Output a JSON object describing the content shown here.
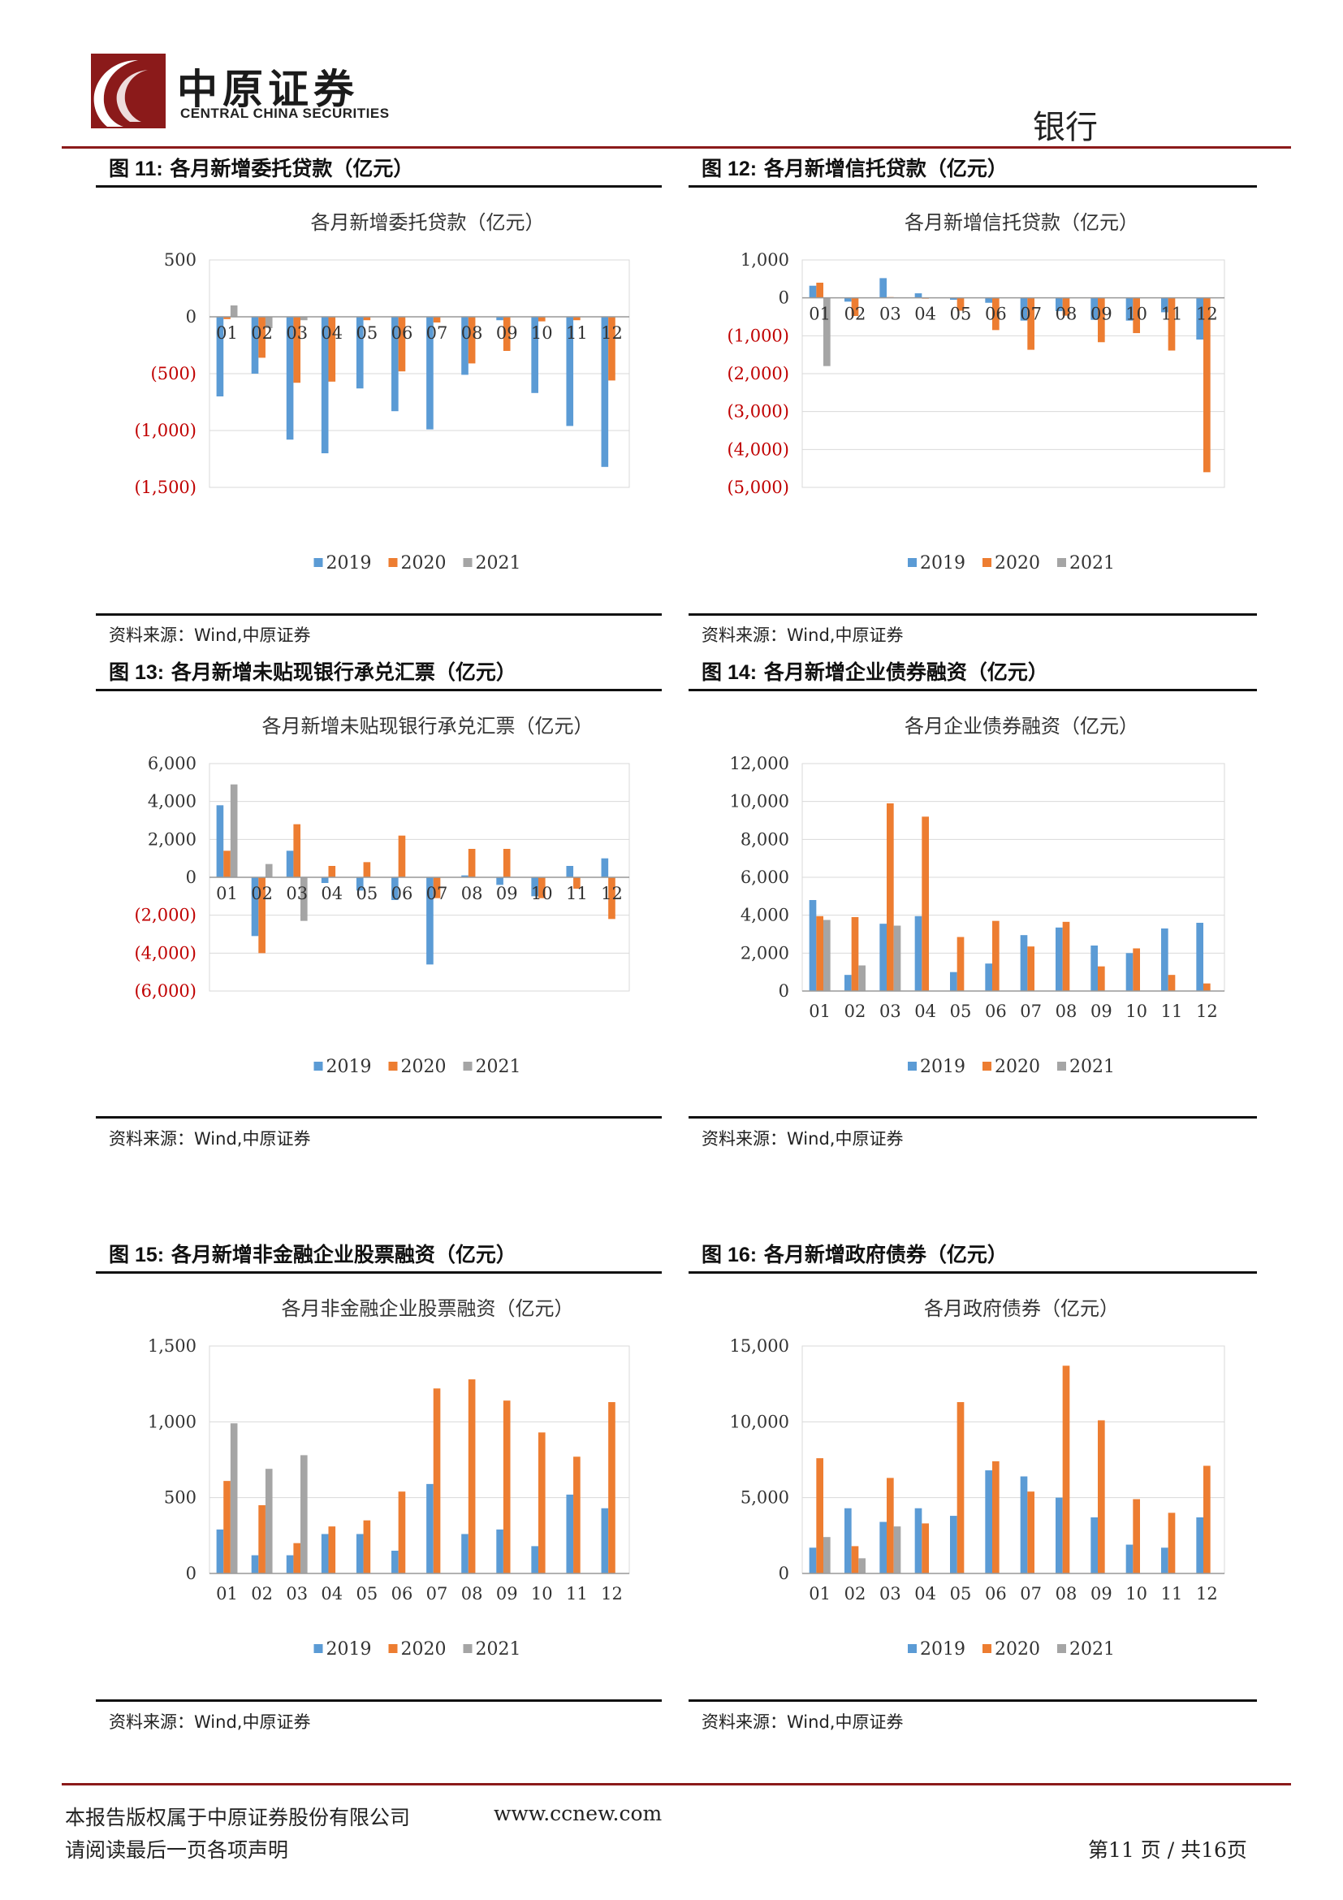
{
  "header": {
    "company_cn": "中原证券",
    "company_en": "CENTRAL CHINA SECURITIES",
    "sector": "银行"
  },
  "figures": [
    {
      "label": "图 11:",
      "title": "各月新增委托贷款（亿元）",
      "source": "资料来源：Wind,中原证券"
    },
    {
      "label": "图 12:",
      "title": "各月新增信托贷款（亿元）",
      "source": "资料来源：Wind,中原证券"
    },
    {
      "label": "图 13:",
      "title": "各月新增未贴现银行承兑汇票（亿元）",
      "source": "资料来源：Wind,中原证券"
    },
    {
      "label": "图 14:",
      "title": "各月新增企业债券融资（亿元）",
      "source": "资料来源：Wind,中原证券"
    },
    {
      "label": "图 15:",
      "title": "各月新增非金融企业股票融资（亿元）",
      "source": "资料来源：Wind,中原证券"
    },
    {
      "label": "图 16:",
      "title": "各月新增政府债券（亿元）",
      "source": "资料来源：Wind,中原证券"
    }
  ],
  "footer": {
    "copyright": "本报告版权属于中原证券股份有限公司",
    "website": "www.ccnew.com",
    "disclaimer": "请阅读最后一页各项声明",
    "page": "第11 页 / 共16页"
  },
  "colors": {
    "2019": "#5b9bd5",
    "2020": "#ed7d31",
    "2021": "#a5a5a5",
    "negative_tick": "#c00000",
    "brand_red": "#8b1a1a"
  },
  "chart_data": [
    {
      "type": "bar",
      "title": "各月新增委托贷款（亿元）",
      "categories": [
        "01",
        "02",
        "03",
        "04",
        "05",
        "06",
        "07",
        "08",
        "09",
        "10",
        "11",
        "12"
      ],
      "ylim": [
        -1500,
        500
      ],
      "yticks": [
        500,
        0,
        -500,
        -1000,
        -1500
      ],
      "ytick_labels": [
        "500",
        "0",
        "(500)",
        "(1,000)",
        "(1,500)"
      ],
      "legend": "bottom",
      "series": [
        {
          "name": "2019",
          "values": [
            -700,
            -500,
            -1080,
            -1200,
            -630,
            -830,
            -990,
            -510,
            -30,
            -670,
            -960,
            -1320
          ]
        },
        {
          "name": "2020",
          "values": [
            -20,
            -360,
            -580,
            -570,
            -30,
            -480,
            -50,
            -410,
            -300,
            -40,
            -30,
            -560
          ]
        },
        {
          "name": "2021",
          "values": [
            100,
            -100,
            -30,
            null,
            null,
            null,
            null,
            null,
            null,
            null,
            null,
            null
          ]
        }
      ]
    },
    {
      "type": "bar",
      "title": "各月新增信托贷款（亿元）",
      "categories": [
        "01",
        "02",
        "03",
        "04",
        "05",
        "06",
        "07",
        "08",
        "09",
        "10",
        "11",
        "12"
      ],
      "ylim": [
        -5000,
        1000
      ],
      "yticks": [
        1000,
        0,
        -1000,
        -2000,
        -3000,
        -4000,
        -5000
      ],
      "ytick_labels": [
        "1,000",
        "0",
        "(1,000)",
        "(2,000)",
        "(3,000)",
        "(4,000)",
        "(5,000)"
      ],
      "legend": "bottom",
      "series": [
        {
          "name": "2019",
          "values": [
            320,
            -100,
            520,
            120,
            -50,
            -130,
            -600,
            -350,
            -580,
            -600,
            -380,
            -1100
          ]
        },
        {
          "name": "2020",
          "values": [
            400,
            -480,
            20,
            -20,
            -340,
            -850,
            -1370,
            -470,
            -1170,
            -930,
            -1390,
            -4600
          ]
        },
        {
          "name": "2021",
          "values": [
            -1800,
            null,
            null,
            null,
            null,
            null,
            null,
            null,
            null,
            null,
            null,
            null
          ]
        }
      ]
    },
    {
      "type": "bar",
      "title": "各月新增未贴现银行承兑汇票（亿元）",
      "categories": [
        "01",
        "02",
        "03",
        "04",
        "05",
        "06",
        "07",
        "08",
        "09",
        "10",
        "11",
        "12"
      ],
      "ylim": [
        -6000,
        6000
      ],
      "yticks": [
        6000,
        4000,
        2000,
        0,
        -2000,
        -4000,
        -6000
      ],
      "ytick_labels": [
        "6,000",
        "4,000",
        "2,000",
        "0",
        "(2,000)",
        "(4,000)",
        "(6,000)"
      ],
      "legend": "bottom",
      "series": [
        {
          "name": "2019",
          "values": [
            3800,
            -3100,
            1400,
            -300,
            -700,
            -1200,
            -4600,
            100,
            -400,
            -1000,
            600,
            1000
          ]
        },
        {
          "name": "2020",
          "values": [
            1400,
            -4000,
            2800,
            600,
            800,
            2200,
            -1100,
            1500,
            1500,
            -1100,
            -600,
            -2200
          ]
        },
        {
          "name": "2021",
          "values": [
            4900,
            700,
            -2300,
            null,
            null,
            null,
            null,
            null,
            null,
            null,
            null,
            null
          ]
        }
      ]
    },
    {
      "type": "bar",
      "title": "各月企业债券融资（亿元）",
      "categories": [
        "01",
        "02",
        "03",
        "04",
        "05",
        "06",
        "07",
        "08",
        "09",
        "10",
        "11",
        "12"
      ],
      "ylim": [
        0,
        12000
      ],
      "yticks": [
        12000,
        10000,
        8000,
        6000,
        4000,
        2000,
        0
      ],
      "ytick_labels": [
        "12,000",
        "10,000",
        "8,000",
        "6,000",
        "4,000",
        "2,000",
        "0"
      ],
      "legend": "bottom",
      "series": [
        {
          "name": "2019",
          "values": [
            4800,
            850,
            3550,
            3950,
            1000,
            1450,
            2950,
            3350,
            2400,
            2000,
            3300,
            3600
          ]
        },
        {
          "name": "2020",
          "values": [
            3950,
            3900,
            9900,
            9200,
            2850,
            3700,
            2350,
            3650,
            1300,
            2250,
            850,
            400
          ]
        },
        {
          "name": "2021",
          "values": [
            3750,
            1350,
            3450,
            null,
            null,
            null,
            null,
            null,
            null,
            null,
            null,
            null
          ]
        }
      ]
    },
    {
      "type": "bar",
      "title": "各月非金融企业股票融资（亿元）",
      "categories": [
        "01",
        "02",
        "03",
        "04",
        "05",
        "06",
        "07",
        "08",
        "09",
        "10",
        "11",
        "12"
      ],
      "ylim": [
        0,
        1500
      ],
      "yticks": [
        1500,
        1000,
        500,
        0
      ],
      "ytick_labels": [
        "1,500",
        "1,000",
        "500",
        "0"
      ],
      "legend": "bottom",
      "series": [
        {
          "name": "2019",
          "values": [
            290,
            120,
            120,
            260,
            260,
            150,
            590,
            260,
            290,
            180,
            520,
            430
          ]
        },
        {
          "name": "2020",
          "values": [
            610,
            450,
            200,
            310,
            350,
            540,
            1220,
            1280,
            1140,
            930,
            770,
            1130
          ]
        },
        {
          "name": "2021",
          "values": [
            990,
            690,
            780,
            null,
            null,
            null,
            null,
            null,
            null,
            null,
            null,
            null
          ]
        }
      ]
    },
    {
      "type": "bar",
      "title": "各月政府债券（亿元）",
      "categories": [
        "01",
        "02",
        "03",
        "04",
        "05",
        "06",
        "07",
        "08",
        "09",
        "10",
        "11",
        "12"
      ],
      "ylim": [
        0,
        15000
      ],
      "yticks": [
        15000,
        10000,
        5000,
        0
      ],
      "ytick_labels": [
        "15,000",
        "10,000",
        "5,000",
        "0"
      ],
      "legend": "bottom",
      "series": [
        {
          "name": "2019",
          "values": [
            1700,
            4300,
            3400,
            4300,
            3800,
            6800,
            6400,
            5000,
            3700,
            1900,
            1700,
            3700
          ]
        },
        {
          "name": "2020",
          "values": [
            7600,
            1800,
            6300,
            3300,
            11300,
            7400,
            5400,
            13700,
            10100,
            4900,
            4000,
            7100
          ]
        },
        {
          "name": "2021",
          "values": [
            2400,
            1000,
            3100,
            null,
            null,
            null,
            null,
            null,
            null,
            null,
            null,
            null
          ]
        }
      ]
    }
  ]
}
